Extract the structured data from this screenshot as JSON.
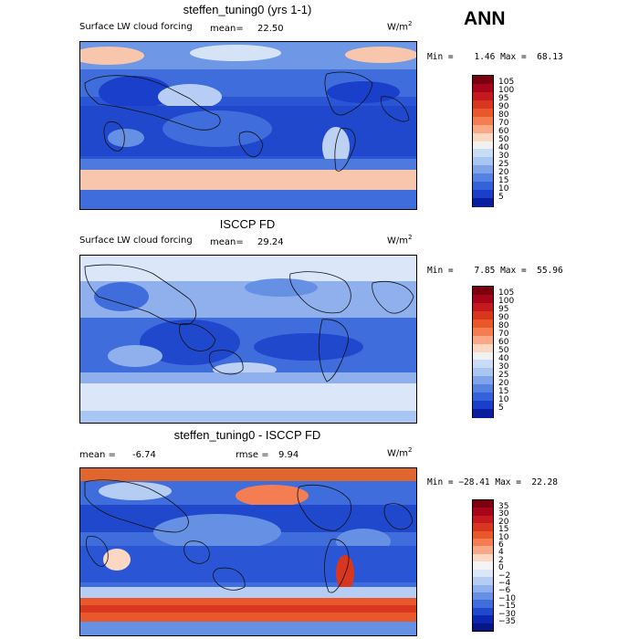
{
  "season": "ANN",
  "panels": [
    {
      "id": "model",
      "title": "steffen_tuning0 (yrs 1-1)",
      "variable": "Surface LW cloud forcing",
      "mean_label": "mean=",
      "mean": "22.50",
      "units": "W/m",
      "units_exp": "2",
      "minmax": "Min =    1.46 Max =  68.13",
      "colorbar_levels": [
        "105",
        "100",
        "95",
        "90",
        "80",
        "70",
        "60",
        "50",
        "40",
        "30",
        "25",
        "20",
        "15",
        "10",
        "5"
      ],
      "colorbar_colors": [
        "#7a0010",
        "#a7061a",
        "#c3191f",
        "#d9361f",
        "#e9582b",
        "#f47e52",
        "#f9a986",
        "#fcd7c2",
        "#f1f1f1",
        "#c9dcf5",
        "#a9c6f2",
        "#7fa4ea",
        "#5582e0",
        "#3562d8",
        "#1a3fcb",
        "#0a1f9e"
      ]
    },
    {
      "id": "obs",
      "title": "ISCCP FD",
      "variable": "Surface LW cloud forcing",
      "mean_label": "mean=",
      "mean": "29.24",
      "units": "W/m",
      "units_exp": "2",
      "minmax": "Min =    7.85 Max =  55.96",
      "colorbar_levels": [
        "105",
        "100",
        "95",
        "90",
        "80",
        "70",
        "60",
        "50",
        "40",
        "30",
        "25",
        "20",
        "15",
        "10",
        "5"
      ],
      "colorbar_colors": [
        "#7a0010",
        "#a7061a",
        "#c3191f",
        "#d9361f",
        "#e9582b",
        "#f47e52",
        "#f9a986",
        "#fcd7c2",
        "#f1f1f1",
        "#c9dcf5",
        "#a9c6f2",
        "#7fa4ea",
        "#5582e0",
        "#3562d8",
        "#1a3fcb",
        "#0a1f9e"
      ]
    },
    {
      "id": "diff",
      "title": "steffen_tuning0 - ISCCP FD",
      "mean_label": "mean =",
      "mean": "-6.74",
      "rmse_label": "rmse =",
      "rmse": "9.94",
      "units": "W/m",
      "units_exp": "2",
      "minmax": "Min = −28.41 Max =  22.28",
      "colorbar_levels": [
        "35",
        "30",
        "20",
        "15",
        "10",
        "6",
        "4",
        "2",
        "0",
        "−2",
        "−4",
        "−6",
        "−10",
        "−15",
        "−30",
        "−35"
      ],
      "colorbar_colors": [
        "#7a0010",
        "#a7061a",
        "#c3191f",
        "#d9361f",
        "#e9582b",
        "#f47e52",
        "#f9a986",
        "#fcd7c2",
        "#f4f4f4",
        "#dbe6f8",
        "#b6cdf3",
        "#8fb0ec",
        "#6690e3",
        "#3f6ddb",
        "#2048cd",
        "#0d28b0",
        "#071585"
      ]
    }
  ]
}
